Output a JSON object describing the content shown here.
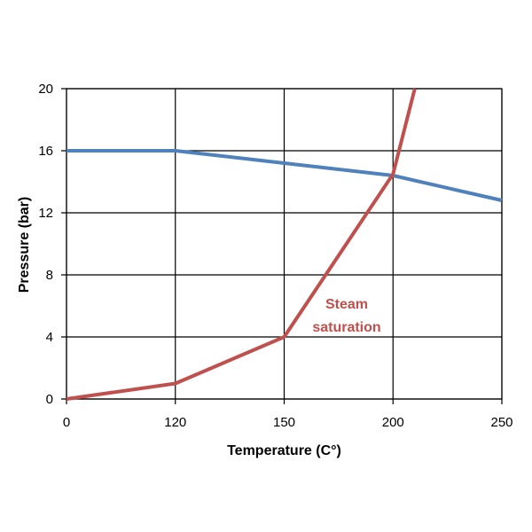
{
  "chart_data": {
    "type": "line",
    "title": "",
    "xlabel": "Temperature (C°)",
    "ylabel": "Pressure (bar)",
    "x_tick_labels": [
      "0",
      "120",
      "150",
      "200",
      "250"
    ],
    "y_tick_labels": [
      "0",
      "4",
      "8",
      "12",
      "16",
      "20"
    ],
    "y_ticks": [
      0,
      4,
      8,
      12,
      16,
      20
    ],
    "ylim": [
      0,
      20
    ],
    "grid": true,
    "legend": "none",
    "series": [
      {
        "color": "#4f81bd",
        "points": [
          {
            "x": 0,
            "y": 16
          },
          {
            "x": 120,
            "y": 16
          },
          {
            "x": 150,
            "y": 15.2
          },
          {
            "x": 200,
            "y": 14.4
          },
          {
            "x": 250,
            "y": 12.8
          }
        ]
      },
      {
        "name": "Steam saturation",
        "color": "#c0504d",
        "points": [
          {
            "x": 0,
            "y": 0
          },
          {
            "x": 120,
            "y": 1
          },
          {
            "x": 150,
            "y": 4
          },
          {
            "x": 200,
            "y": 14.5
          },
          {
            "x": 210,
            "y": 20
          }
        ]
      }
    ],
    "annotations": [
      {
        "lines": [
          "Steam",
          "saturation"
        ],
        "color": "#c0504d"
      }
    ]
  }
}
